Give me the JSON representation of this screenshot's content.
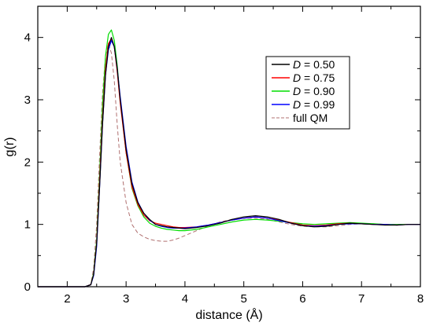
{
  "chart_data": {
    "type": "line",
    "xlabel": "distance (Å)",
    "ylabel": "g(r)",
    "xlim": [
      1.5,
      8
    ],
    "ylim": [
      0,
      4.5
    ],
    "x_ticks": [
      "2",
      "3",
      "4",
      "5",
      "6",
      "7",
      "8"
    ],
    "y_ticks": [
      "0",
      "1",
      "2",
      "3",
      "4"
    ],
    "grid": false,
    "legend_position": "upper-right",
    "x": [
      1.5,
      2.0,
      2.3,
      2.4,
      2.45,
      2.5,
      2.55,
      2.6,
      2.65,
      2.7,
      2.75,
      2.8,
      2.85,
      2.9,
      3.0,
      3.1,
      3.2,
      3.3,
      3.4,
      3.5,
      3.6,
      3.7,
      3.8,
      3.9,
      4.0,
      4.2,
      4.4,
      4.6,
      4.8,
      5.0,
      5.2,
      5.4,
      5.6,
      5.8,
      6.0,
      6.2,
      6.4,
      6.6,
      6.8,
      7.0,
      7.2,
      7.4,
      7.6,
      7.8,
      8.0
    ],
    "series": [
      {
        "name_prefix": "D",
        "name_value": "= 0.50",
        "color": "#000000",
        "dashed": false,
        "values": [
          0,
          0,
          0,
          0.03,
          0.2,
          0.7,
          1.6,
          2.6,
          3.4,
          3.85,
          4.0,
          3.85,
          3.5,
          3.0,
          2.2,
          1.65,
          1.35,
          1.18,
          1.08,
          1.0,
          0.98,
          0.96,
          0.95,
          0.94,
          0.93,
          0.95,
          0.98,
          1.02,
          1.08,
          1.12,
          1.14,
          1.12,
          1.08,
          1.02,
          0.98,
          0.96,
          0.97,
          1.0,
          1.02,
          1.01,
          1.0,
          0.99,
          0.99,
          1.0,
          1.0
        ]
      },
      {
        "name_prefix": "D",
        "name_value": "= 0.75",
        "color": "#ff0000",
        "dashed": false,
        "values": [
          0,
          0,
          0,
          0.03,
          0.2,
          0.7,
          1.7,
          2.7,
          3.5,
          3.9,
          3.98,
          3.85,
          3.45,
          2.95,
          2.15,
          1.6,
          1.32,
          1.15,
          1.06,
          1.02,
          1.0,
          0.98,
          0.96,
          0.95,
          0.95,
          0.96,
          0.99,
          1.03,
          1.07,
          1.1,
          1.12,
          1.1,
          1.07,
          1.03,
          0.99,
          0.98,
          0.99,
          1.01,
          1.02,
          1.01,
          1.0,
          1.0,
          0.99,
          1.0,
          1.0
        ]
      },
      {
        "name_prefix": "D",
        "name_value": "= 0.90",
        "color": "#00dd00",
        "dashed": false,
        "values": [
          0,
          0,
          0,
          0.03,
          0.22,
          0.75,
          1.8,
          2.9,
          3.7,
          4.05,
          4.12,
          3.95,
          3.55,
          3.0,
          2.15,
          1.58,
          1.3,
          1.12,
          1.02,
          0.97,
          0.94,
          0.92,
          0.91,
          0.9,
          0.9,
          0.92,
          0.96,
          1.0,
          1.04,
          1.07,
          1.08,
          1.07,
          1.05,
          1.03,
          1.01,
          1.0,
          1.01,
          1.02,
          1.03,
          1.02,
          1.01,
          1.0,
          1.0,
          1.0,
          1.0
        ]
      },
      {
        "name_prefix": "D",
        "name_value": "= 0.99",
        "color": "#0000ff",
        "dashed": false,
        "values": [
          0,
          0,
          0,
          0.03,
          0.18,
          0.65,
          1.6,
          2.6,
          3.4,
          3.8,
          3.95,
          3.85,
          3.5,
          3.05,
          2.25,
          1.68,
          1.36,
          1.18,
          1.07,
          1.0,
          0.97,
          0.95,
          0.94,
          0.94,
          0.94,
          0.96,
          0.99,
          1.03,
          1.07,
          1.1,
          1.12,
          1.1,
          1.06,
          1.02,
          0.98,
          0.97,
          0.98,
          1.0,
          1.01,
          1.01,
          1.0,
          1.0,
          0.99,
          1.0,
          1.0
        ]
      },
      {
        "name": "full QM",
        "color": "#b07070",
        "dashed": true,
        "values": [
          0,
          0,
          0,
          0.04,
          0.3,
          1.0,
          2.1,
          3.1,
          3.7,
          3.9,
          3.75,
          3.3,
          2.6,
          2.0,
          1.35,
          1.0,
          0.86,
          0.8,
          0.76,
          0.74,
          0.73,
          0.73,
          0.75,
          0.78,
          0.82,
          0.9,
          0.98,
          1.04,
          1.08,
          1.1,
          1.1,
          1.08,
          1.04,
          1.0,
          0.97,
          0.96,
          0.96,
          0.98,
          1.0,
          1.01,
          1.01,
          1.0,
          1.0,
          1.0,
          1.0
        ]
      }
    ]
  }
}
